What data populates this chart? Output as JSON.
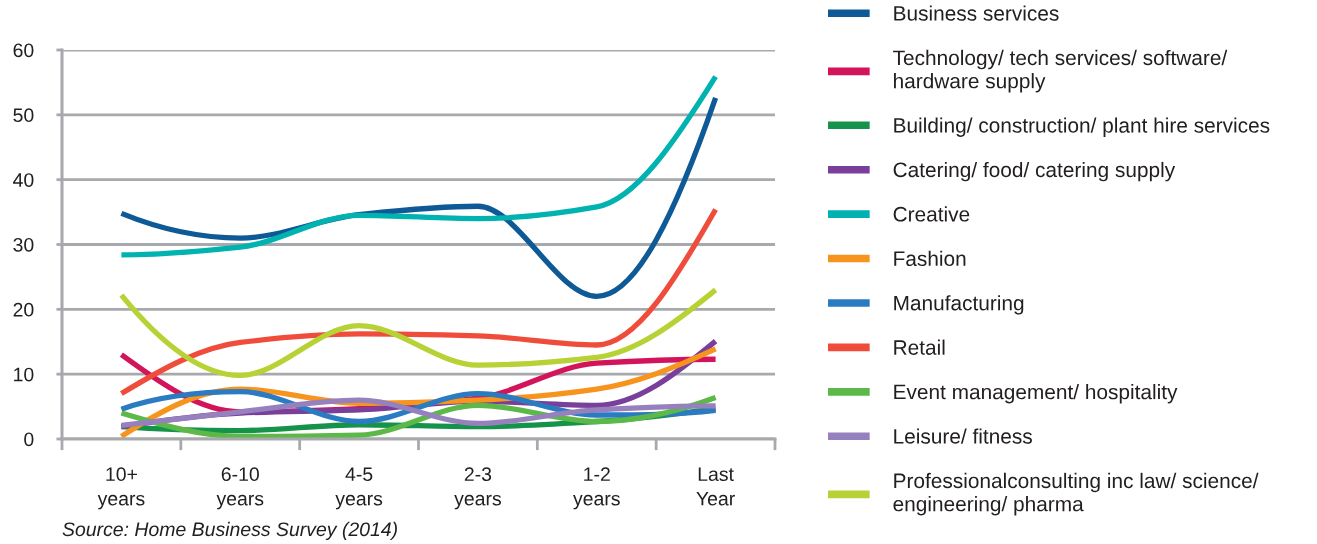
{
  "chart_data": {
    "type": "line",
    "categories": [
      "10+\nyears",
      "6-10\nyears",
      "4-5\nyears",
      "2-3\nyears",
      "1-2\nyears",
      "Last\nYear"
    ],
    "series": [
      {
        "name": "Business services",
        "color": "#0e5a97",
        "values": [
          34.8,
          31.0,
          34.6,
          35.9,
          22.0,
          52.6
        ]
      },
      {
        "name": "Technology/ tech services/ software/\nhardware supply",
        "color": "#d3145a",
        "values": [
          13.0,
          4.2,
          4.7,
          6.3,
          11.7,
          12.3
        ]
      },
      {
        "name": "Building/ construction/ plant hire services",
        "color": "#16934a",
        "values": [
          1.9,
          1.3,
          2.2,
          1.9,
          2.7,
          4.7
        ]
      },
      {
        "name": "Catering/ food/ catering supply",
        "color": "#7a3f9a",
        "values": [
          1.9,
          4.0,
          4.5,
          5.8,
          5.2,
          15.1
        ]
      },
      {
        "name": "Creative",
        "color": "#00b2b0",
        "values": [
          28.4,
          29.6,
          34.5,
          34.0,
          35.8,
          55.9
        ]
      },
      {
        "name": "Fashion",
        "color": "#f7941e",
        "values": [
          0.4,
          7.7,
          5.5,
          6.0,
          7.7,
          13.9
        ]
      },
      {
        "name": "Manufacturing",
        "color": "#2a7bc1",
        "values": [
          4.6,
          7.3,
          2.7,
          7.0,
          3.7,
          4.4
        ]
      },
      {
        "name": "Retail",
        "color": "#ef4c3b",
        "values": [
          7.0,
          14.9,
          16.2,
          15.9,
          14.5,
          35.4
        ]
      },
      {
        "name": "Event management/ hospitality",
        "color": "#5cb848",
        "values": [
          4.0,
          0.4,
          0.6,
          5.2,
          2.7,
          6.4
        ]
      },
      {
        "name": "Leisure/ fitness",
        "color": "#9680bd",
        "values": [
          2.1,
          4.2,
          6.0,
          2.4,
          4.5,
          5.1
        ]
      },
      {
        "name": "Professionalconsulting inc law/ science/\nengineering/ pharma",
        "color": "#b6d234",
        "values": [
          22.2,
          9.8,
          17.5,
          11.4,
          12.6,
          23.0
        ]
      }
    ],
    "ylim": [
      0,
      60
    ],
    "yticks": [
      0,
      10,
      20,
      30,
      40,
      50,
      60
    ],
    "grid": "y",
    "legend": "right",
    "line_style": "solid",
    "annotations": [
      "Source: Home Business Survey (2014)"
    ]
  }
}
